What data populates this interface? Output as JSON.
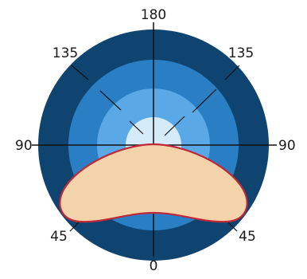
{
  "diagram": {
    "labels": {
      "top": "180",
      "bottom": "0",
      "left": "90",
      "right": "90",
      "upper_left": "135",
      "upper_right": "135",
      "lower_left": "45",
      "lower_right": "45"
    },
    "colors": {
      "ring_outer": "#0f4470",
      "ring_2": "#2a7fc4",
      "ring_3": "#5aa9e6",
      "ring_inner": "#d6ebf9",
      "lobe_fill": "#f2d3aa",
      "lobe_stroke": "#c0283a",
      "axis": "#111111"
    }
  }
}
